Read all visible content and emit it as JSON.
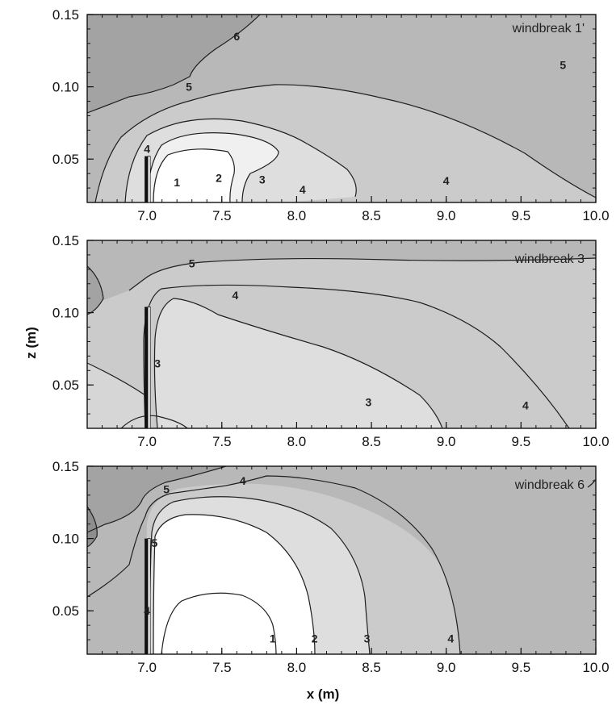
{
  "chart_data": [
    {
      "type": "contour",
      "annotation": "windbreak 1'",
      "xlim": [
        6.6,
        10.0
      ],
      "ylim": [
        0.02,
        0.15
      ],
      "xticks": [
        "7.0",
        "7.5",
        "8.0",
        "8.5",
        "9.0",
        "9.5",
        "10.0"
      ],
      "yticks": [
        "0.05",
        "0.10",
        "0.15"
      ],
      "contour_levels": [
        1,
        2,
        3,
        4,
        5,
        6
      ],
      "contour_labels": [
        {
          "text": "6",
          "x": 7.6,
          "y": 0.135
        },
        {
          "text": "5",
          "x": 7.28,
          "y": 0.1
        },
        {
          "text": "5",
          "x": 9.78,
          "y": 0.115
        },
        {
          "text": "4",
          "x": 7.0,
          "y": 0.057
        },
        {
          "text": "4",
          "x": 8.04,
          "y": 0.029
        },
        {
          "text": "4",
          "x": 9.0,
          "y": 0.035
        },
        {
          "text": "3",
          "x": 7.77,
          "y": 0.036
        },
        {
          "text": "2",
          "x": 7.48,
          "y": 0.037
        },
        {
          "text": "1",
          "x": 7.2,
          "y": 0.034
        }
      ],
      "windbreak": {
        "x": 7.0,
        "height": 0.052
      }
    },
    {
      "type": "contour",
      "annotation": "windbreak 3",
      "xlim": [
        6.6,
        10.0
      ],
      "ylim": [
        0.02,
        0.15
      ],
      "xticks": [
        "7.0",
        "7.5",
        "8.0",
        "8.5",
        "9.0",
        "9.5",
        "10.0"
      ],
      "yticks": [
        "0.05",
        "0.10",
        "0.15"
      ],
      "contour_levels": [
        3,
        4,
        5
      ],
      "contour_labels": [
        {
          "text": "5",
          "x": 7.3,
          "y": 0.134
        },
        {
          "text": "4",
          "x": 7.59,
          "y": 0.112
        },
        {
          "text": "3",
          "x": 7.07,
          "y": 0.065
        },
        {
          "text": "3",
          "x": 8.48,
          "y": 0.038
        },
        {
          "text": "4",
          "x": 9.53,
          "y": 0.036
        }
      ],
      "windbreak": {
        "x": 7.0,
        "height": 0.104
      }
    },
    {
      "type": "contour",
      "annotation": "windbreak 6",
      "xlim": [
        6.6,
        10.0
      ],
      "ylim": [
        0.02,
        0.15
      ],
      "xticks": [
        "7.0",
        "7.5",
        "8.0",
        "8.5",
        "9.0",
        "9.5",
        "10.0"
      ],
      "yticks": [
        "0.05",
        "0.10",
        "0.15"
      ],
      "contour_levels": [
        1,
        2,
        3,
        4,
        5
      ],
      "contour_labels": [
        {
          "text": "5",
          "x": 7.13,
          "y": 0.134
        },
        {
          "text": "4",
          "x": 7.64,
          "y": 0.14
        },
        {
          "text": "5",
          "x": 7.05,
          "y": 0.097
        },
        {
          "text": "4",
          "x": 7.0,
          "y": 0.05
        },
        {
          "text": "1",
          "x": 7.84,
          "y": 0.031
        },
        {
          "text": "2",
          "x": 8.12,
          "y": 0.031
        },
        {
          "text": "3",
          "x": 8.47,
          "y": 0.031
        },
        {
          "text": "4",
          "x": 9.03,
          "y": 0.031
        }
      ],
      "windbreak": {
        "x": 7.0,
        "height": 0.1
      }
    }
  ],
  "axes": {
    "xlabel": "x (m)",
    "ylabel": "z (m)"
  },
  "colors": {
    "level_fill": [
      "#ffffff",
      "#f0f0f0",
      "#dedede",
      "#cbcbcb",
      "#b8b8b8",
      "#a3a3a3",
      "#8e8e8e"
    ],
    "contour_line": "#1e1e1e",
    "windbreak": "#111111"
  }
}
